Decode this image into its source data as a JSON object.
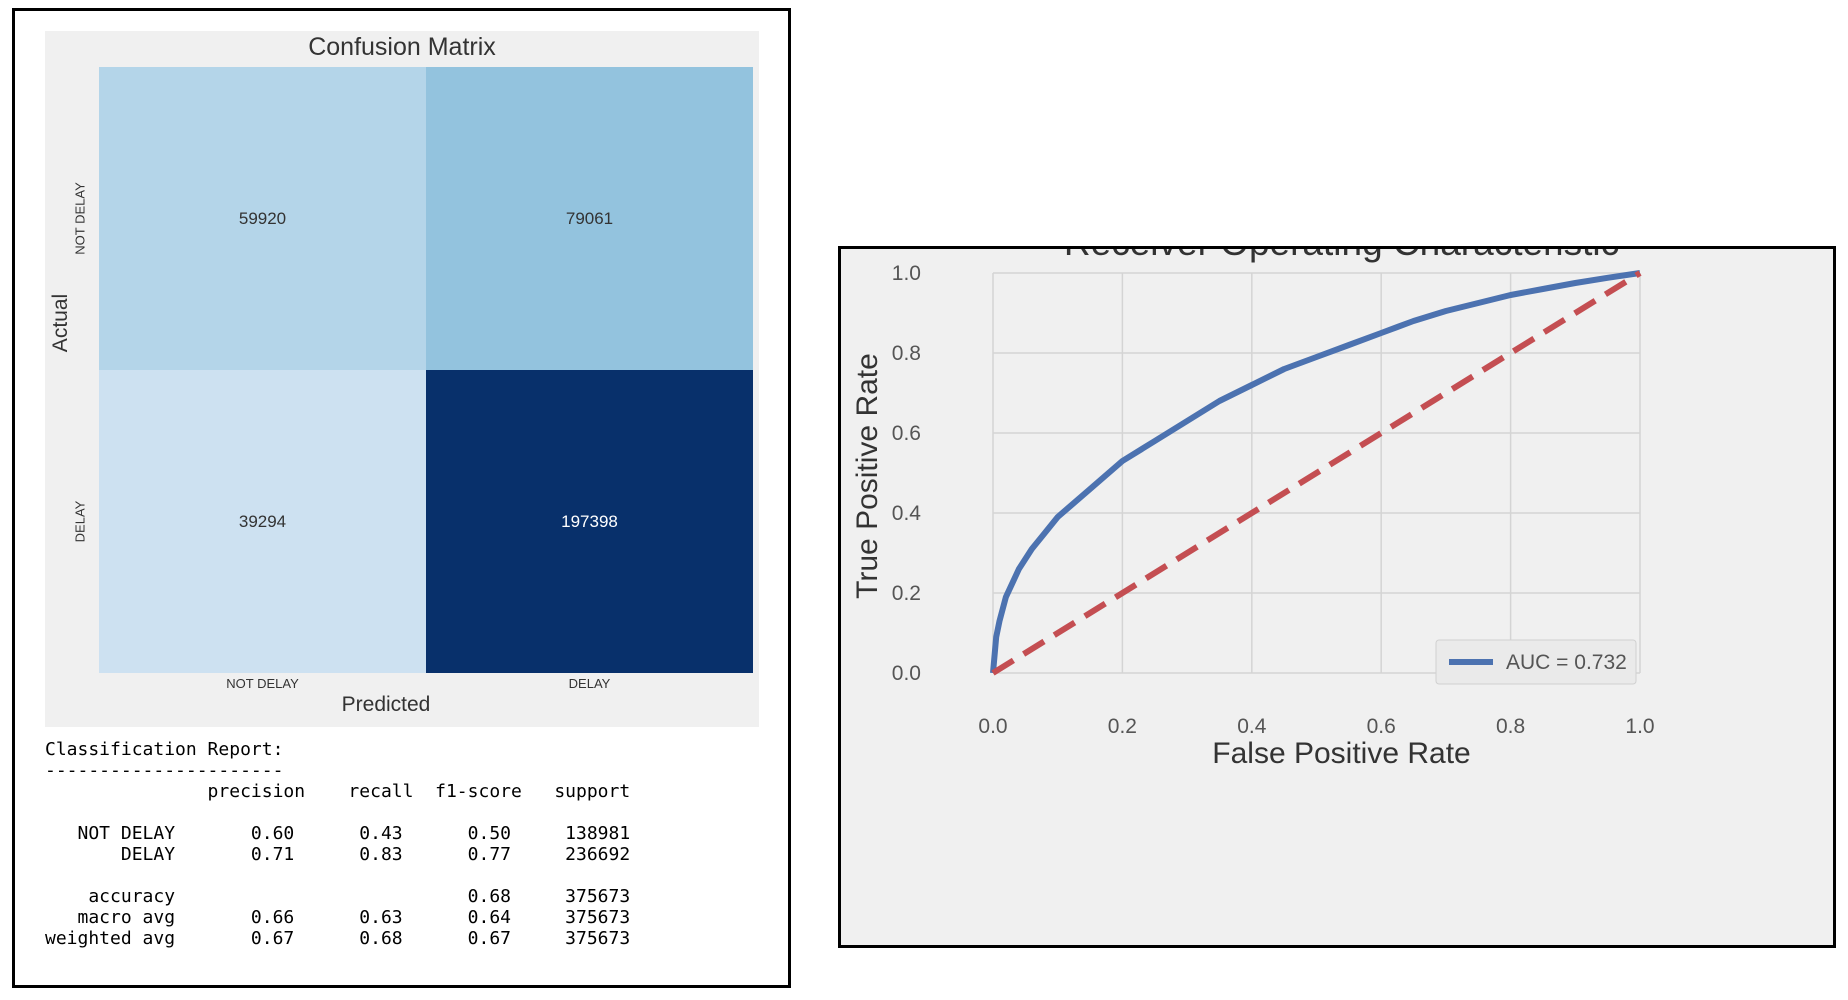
{
  "chart_data": [
    {
      "type": "heatmap",
      "title": "Confusion Matrix",
      "xlabel": "Predicted",
      "ylabel": "Actual",
      "x_categories": [
        "NOT DELAY",
        "DELAY"
      ],
      "y_categories": [
        "NOT DELAY",
        "DELAY"
      ],
      "values": [
        [
          59920,
          79061
        ],
        [
          39294,
          197398
        ]
      ],
      "colormap": "Blues",
      "cell_colors": [
        [
          "#b4d5e9",
          "#93c3de"
        ],
        [
          "#cde1f1",
          "#08306b"
        ]
      ],
      "text_colors": [
        [
          "#333333",
          "#333333"
        ],
        [
          "#333333",
          "#ffffff"
        ]
      ]
    },
    {
      "type": "table",
      "title": "Classification Report:",
      "separator": "----------------------",
      "columns": [
        "precision",
        "recall",
        "f1-score",
        "support"
      ],
      "rows": [
        {
          "label": "NOT DELAY",
          "values": [
            "0.60",
            "0.43",
            "0.50",
            "138981"
          ]
        },
        {
          "label": "DELAY",
          "values": [
            "0.71",
            "0.83",
            "0.77",
            "236692"
          ]
        },
        {
          "label": "",
          "values": [
            "",
            "",
            "",
            ""
          ]
        },
        {
          "label": "accuracy",
          "values": [
            "",
            "",
            "0.68",
            "375673"
          ]
        },
        {
          "label": "macro avg",
          "values": [
            "0.66",
            "0.63",
            "0.64",
            "375673"
          ]
        },
        {
          "label": "weighted avg",
          "values": [
            "0.67",
            "0.68",
            "0.67",
            "375673"
          ]
        }
      ]
    },
    {
      "type": "line",
      "title": "Receiver Operating Characteristic",
      "xlabel": "False Positive Rate",
      "ylabel": "True Positive Rate",
      "xlim": [
        0.0,
        1.0
      ],
      "ylim": [
        0.0,
        1.0
      ],
      "xticks": [
        "0.0",
        "0.2",
        "0.4",
        "0.6",
        "0.8",
        "1.0"
      ],
      "yticks": [
        "0.0",
        "0.2",
        "0.4",
        "0.6",
        "0.8",
        "1.0"
      ],
      "grid": true,
      "legend_position": "lower right",
      "series": [
        {
          "name": "AUC = 0.732",
          "color": "#4c72b0",
          "style": "solid",
          "x": [
            0.0,
            0.005,
            0.01,
            0.02,
            0.04,
            0.06,
            0.08,
            0.1,
            0.15,
            0.2,
            0.25,
            0.3,
            0.35,
            0.4,
            0.45,
            0.5,
            0.55,
            0.6,
            0.65,
            0.7,
            0.75,
            0.8,
            0.85,
            0.9,
            0.95,
            1.0
          ],
          "y": [
            0.0,
            0.09,
            0.13,
            0.19,
            0.26,
            0.31,
            0.35,
            0.39,
            0.46,
            0.53,
            0.58,
            0.63,
            0.68,
            0.72,
            0.76,
            0.79,
            0.82,
            0.85,
            0.88,
            0.905,
            0.925,
            0.945,
            0.96,
            0.975,
            0.988,
            1.0
          ]
        },
        {
          "color": "#c44e52",
          "style": "dashed",
          "x": [
            0.0,
            1.0
          ],
          "y": [
            0.0,
            1.0
          ]
        }
      ]
    }
  ]
}
